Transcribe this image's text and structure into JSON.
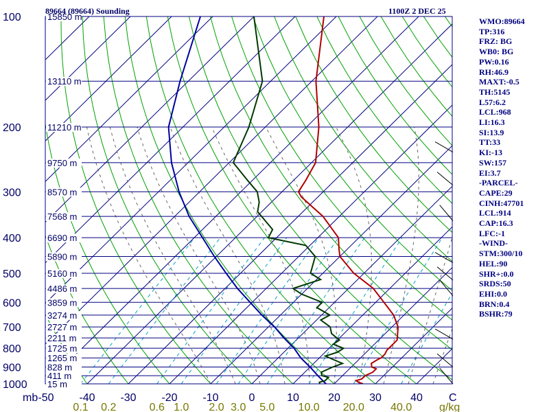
{
  "header": {
    "station": "89664 (89664) Sounding",
    "time": "1100Z  2 DEC 25"
  },
  "chart_data": {
    "type": "skew-t",
    "title": "89664 (89664) Sounding",
    "valid": "1100Z  2 DEC 25",
    "pressure_axis_unit": "mb",
    "temperature_axis_unit": "C",
    "mixing_ratio_unit": "g/kg",
    "pressure_ticks": [
      "100",
      "200",
      "300",
      "400",
      "500",
      "600",
      "700",
      "800",
      "900",
      "1000"
    ],
    "pressure_values": [
      100,
      200,
      300,
      400,
      500,
      600,
      700,
      800,
      900,
      1000
    ],
    "temperature_ticks": [
      "-50",
      "-40",
      "-30",
      "-20",
      "-10",
      "0",
      "10",
      "20",
      "30",
      "40"
    ],
    "temperature_values": [
      -50,
      -40,
      -30,
      -20,
      -10,
      0,
      10,
      20,
      30,
      40
    ],
    "mixing_ratio_ticks": [
      "0.1",
      "0.2",
      "0.6",
      "1.0",
      "2.0",
      "3.0",
      "5.0",
      "10.0",
      "20.0",
      "40.0"
    ],
    "mixing_ratio_values": [
      0.1,
      0.2,
      0.6,
      1.0,
      2.0,
      3.0,
      5.0,
      10.0,
      20.0,
      40.0
    ],
    "height_labels": [
      {
        "p": 100,
        "text": "15850 m"
      },
      {
        "p": 150,
        "text": "13110 m"
      },
      {
        "p": 200,
        "text": "11210 m"
      },
      {
        "p": 250,
        "text": "9750 m"
      },
      {
        "p": 300,
        "text": "8570 m"
      },
      {
        "p": 350,
        "text": "7568 m"
      },
      {
        "p": 400,
        "text": "6690 m"
      },
      {
        "p": 450,
        "text": "5890 m"
      },
      {
        "p": 500,
        "text": "5160 m"
      },
      {
        "p": 550,
        "text": "4486 m"
      },
      {
        "p": 600,
        "text": "3859 m"
      },
      {
        "p": 650,
        "text": "3274 m"
      },
      {
        "p": 700,
        "text": "2727 m"
      },
      {
        "p": 750,
        "text": "2211 m"
      },
      {
        "p": 800,
        "text": "1725 m"
      },
      {
        "p": 850,
        "text": "1265 m"
      },
      {
        "p": 900,
        "text": "828 m"
      },
      {
        "p": 950,
        "text": "411 m"
      },
      {
        "p": 1000,
        "text": "15 m"
      }
    ],
    "temperature_profile": [
      [
        1000,
        27.0
      ],
      [
        990,
        25.5
      ],
      [
        980,
        24.5
      ],
      [
        970,
        25.5
      ],
      [
        950,
        25.5
      ],
      [
        930,
        26.5
      ],
      [
        910,
        26.5
      ],
      [
        900,
        25.0
      ],
      [
        880,
        24.0
      ],
      [
        860,
        24.5
      ],
      [
        850,
        25.0
      ],
      [
        830,
        25.0
      ],
      [
        810,
        24.5
      ],
      [
        800,
        24.5
      ],
      [
        780,
        24.5
      ],
      [
        760,
        24.5
      ],
      [
        700,
        21.5
      ],
      [
        650,
        17.5
      ],
      [
        600,
        12.0
      ],
      [
        550,
        6.0
      ],
      [
        500,
        -2.5
      ],
      [
        450,
        -10.0
      ],
      [
        430,
        -12.0
      ],
      [
        400,
        -15.0
      ],
      [
        350,
        -24.0
      ],
      [
        310,
        -34.0
      ],
      [
        300,
        -36.0
      ],
      [
        280,
        -37.0
      ],
      [
        250,
        -39.0
      ],
      [
        200,
        -47.0
      ],
      [
        150,
        -59.0
      ],
      [
        100,
        -73.0
      ]
    ],
    "dewpoint_profile": [
      [
        1000,
        16.5
      ],
      [
        990,
        16.0
      ],
      [
        980,
        17.0
      ],
      [
        960,
        17.0
      ],
      [
        950,
        15.0
      ],
      [
        930,
        14.0
      ],
      [
        900,
        15.5
      ],
      [
        880,
        17.0
      ],
      [
        860,
        14.0
      ],
      [
        840,
        11.0
      ],
      [
        820,
        13.0
      ],
      [
        800,
        13.5
      ],
      [
        780,
        10.0
      ],
      [
        760,
        10.5
      ],
      [
        730,
        7.0
      ],
      [
        700,
        5.0
      ],
      [
        670,
        1.0
      ],
      [
        650,
        2.0
      ],
      [
        620,
        -3.0
      ],
      [
        600,
        -3.0
      ],
      [
        570,
        -10.0
      ],
      [
        550,
        -13.5
      ],
      [
        520,
        -9.0
      ],
      [
        500,
        -13.0
      ],
      [
        450,
        -16.0
      ],
      [
        420,
        -21.0
      ],
      [
        400,
        -32.0
      ],
      [
        380,
        -33.0
      ],
      [
        340,
        -41.0
      ],
      [
        320,
        -43.0
      ],
      [
        300,
        -46.0
      ],
      [
        280,
        -51.0
      ],
      [
        250,
        -59.0
      ],
      [
        200,
        -64.0
      ],
      [
        150,
        -72.0
      ],
      [
        100,
        -90.0
      ]
    ],
    "parcel_profile": [
      [
        1000,
        18.0
      ],
      [
        950,
        14.0
      ],
      [
        900,
        10.0
      ],
      [
        850,
        5.5
      ],
      [
        800,
        1.5
      ],
      [
        750,
        -3.5
      ],
      [
        700,
        -8.5
      ],
      [
        650,
        -14.5
      ],
      [
        600,
        -20.5
      ],
      [
        550,
        -27.0
      ],
      [
        500,
        -33.5
      ],
      [
        450,
        -40.5
      ],
      [
        400,
        -48.0
      ],
      [
        350,
        -56.5
      ],
      [
        300,
        -65.0
      ],
      [
        250,
        -74.0
      ],
      [
        200,
        -83.5
      ],
      [
        150,
        -92.0
      ],
      [
        100,
        -103.0
      ]
    ],
    "wind_barbs_note": "plotted on right edge of diagram"
  },
  "indices": [
    "WMO:89664",
    "TP:316",
    "FRZ: BG",
    "WB0: BG",
    "PW:0.16",
    "RH:46.9",
    "MAXT:-0.5",
    "TH:5145",
    "L57:6.2",
    "LCL:968",
    "LI:16.3",
    "SI:13.9",
    "TT:33",
    "KI:-13",
    "SW:157",
    "EI:3.7",
    "-PARCEL-",
    "CAPE:29",
    "CINH:47701",
    "LCL:914",
    "CAP:16.3",
    "LFC:-1",
    "-WIND-",
    "STM:300/10",
    "HEL:90",
    "SHR+:0.0",
    "SRDS:50",
    "EHI:0.0",
    "BRN:0.4",
    "BSHR:79"
  ],
  "colors": {
    "isobar": "#000080",
    "isotherm": "#000080",
    "dry_adiabat": "#00a000",
    "moist_adiabat": "#666666",
    "mixing_ratio": "#00a0c0",
    "temperature": "#b00000",
    "dewpoint": "#003800",
    "parcel": "#0000a0",
    "text": "#000080"
  }
}
